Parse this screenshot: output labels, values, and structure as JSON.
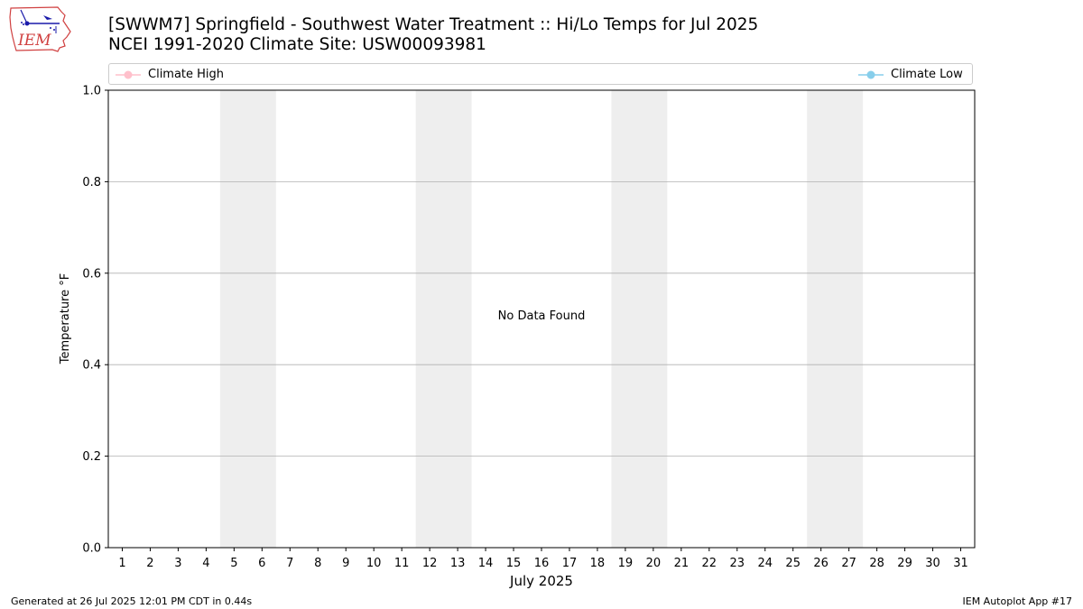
{
  "header": {
    "title_line1": "[SWWM7] Springfield - Southwest Water Treatment :: Hi/Lo Temps for Jul 2025",
    "title_line2": "NCEI 1991-2020 Climate Site: USW00093981",
    "logo_text": "IEM"
  },
  "footer": {
    "generated": "Generated at 26 Jul 2025 12:01 PM CDT in 0.44s",
    "app": "IEM Autoplot App #17"
  },
  "chart_data": {
    "type": "line",
    "title": "[SWWM7] Springfield - Southwest Water Treatment :: Hi/Lo Temps for Jul 2025",
    "subtitle": "NCEI 1991-2020 Climate Site: USW00093981",
    "xlabel": "July 2025",
    "ylabel": "Temperature °F",
    "xlim": [
      0.5,
      31.5
    ],
    "ylim": [
      0.0,
      1.0
    ],
    "x_ticks": [
      1,
      2,
      3,
      4,
      5,
      6,
      7,
      8,
      9,
      10,
      11,
      12,
      13,
      14,
      15,
      16,
      17,
      18,
      19,
      20,
      21,
      22,
      23,
      24,
      25,
      26,
      27,
      28,
      29,
      30,
      31
    ],
    "y_ticks": [
      "0.0",
      "0.2",
      "0.4",
      "0.6",
      "0.8",
      "1.0"
    ],
    "y_tick_values": [
      0.0,
      0.2,
      0.4,
      0.6,
      0.8,
      1.0
    ],
    "weekend_bands": [
      [
        4.5,
        6.5
      ],
      [
        11.5,
        13.5
      ],
      [
        18.5,
        20.5
      ],
      [
        25.5,
        27.5
      ]
    ],
    "grid": "y-only",
    "legend": "top, spanning full width",
    "series": [
      {
        "name": "Climate High",
        "color": "#ffc0cb",
        "values": []
      },
      {
        "name": "Climate Low",
        "color": "#87ceeb",
        "values": []
      }
    ],
    "annotation": "No Data Found",
    "colors": {
      "weekend_band": "#eeeeee",
      "grid": "#b0b0b0",
      "axes": "#000000"
    }
  }
}
